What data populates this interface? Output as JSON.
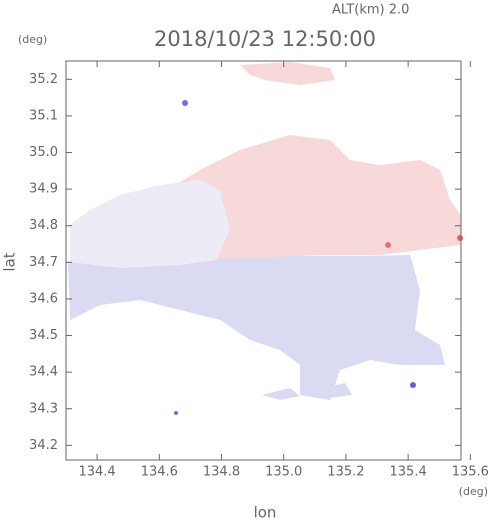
{
  "chart_data": {
    "type": "map",
    "title": "2018/10/23 12:50:00",
    "subtitle": "ALT(km) 2.0",
    "y_unit": "(deg)",
    "x_unit": "(deg)",
    "ylabel": "lat",
    "xlabel": "lon",
    "xlim": [
      134.3,
      135.57
    ],
    "ylim": [
      34.16,
      35.25
    ],
    "xticks": [
      134.4,
      134.6,
      134.8,
      {
        "value": 135.0,
        "label": "135.0"
      },
      135.2,
      135.4,
      135.6
    ],
    "yticks": [
      34.2,
      34.3,
      34.4,
      34.5,
      34.6,
      34.7,
      34.8,
      34.9,
      {
        "value": 35.0,
        "label": "35.0"
      },
      35.1,
      35.2
    ]
  }
}
